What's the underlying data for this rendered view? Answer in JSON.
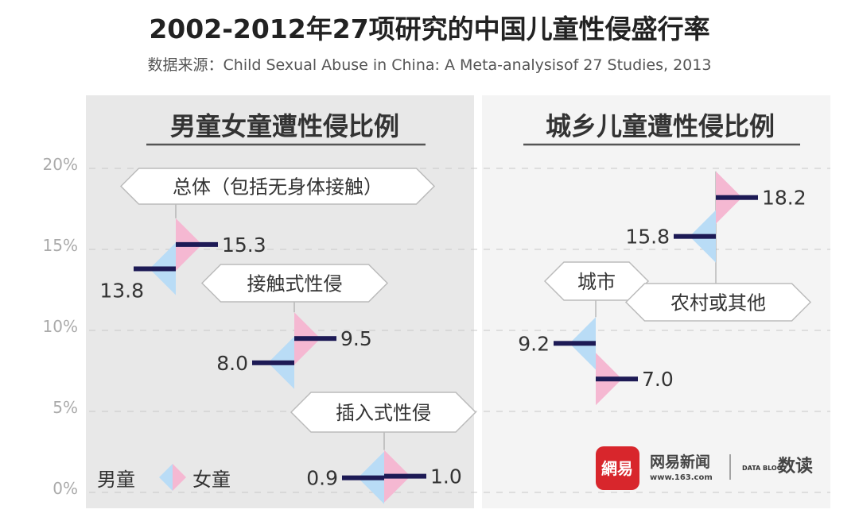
{
  "title": "2002-2012年27项研究的中国儿童性侵盛行率",
  "subtitle": "数据来源：Child Sexual Abuse in China: A Meta-analysisof 27 Studies, 2013",
  "colors": {
    "boy": "#b9dcf6",
    "girl": "#f5b8d2",
    "bar": "#1d1a55",
    "left_panel": "#e8e8e8",
    "right_panel": "#f4f4f4"
  },
  "legend": {
    "boy": "男童",
    "girl": "女童"
  },
  "logo": {
    "brand": "网易新闻",
    "url": "www.163.com",
    "mark": "網易",
    "data_blog": "DATA BLOG",
    "section": "数读"
  },
  "chart_data": [
    {
      "type": "bar",
      "title": "男童女童遭性侵比例",
      "yticks": [
        "0%",
        "5%",
        "10%",
        "15%",
        "20%"
      ],
      "ylim": [
        0,
        20
      ],
      "grid": true,
      "legend_placement": "bottom-left",
      "groups": [
        {
          "label": "总体（包括无身体接触）",
          "boy": 13.8,
          "girl": 15.3,
          "boy_label": "13.8",
          "girl_label": "15.3"
        },
        {
          "label": "接触式性侵",
          "boy": 8.0,
          "girl": 9.5,
          "boy_label": "8.0",
          "girl_label": "9.5"
        },
        {
          "label": "插入式性侵",
          "boy": 0.9,
          "girl": 1.0,
          "boy_label": "0.9",
          "girl_label": "1.0"
        }
      ]
    },
    {
      "type": "bar",
      "title": "城乡儿童遭性侵比例",
      "ylim": [
        0,
        20
      ],
      "grid": true,
      "groups": [
        {
          "label": "城市",
          "boy": 9.2,
          "girl": 7.0,
          "boy_label": "9.2",
          "girl_label": "7.0"
        },
        {
          "label": "农村或其他",
          "boy": 15.8,
          "girl": 18.2,
          "boy_label": "15.8",
          "girl_label": "18.2"
        }
      ]
    }
  ]
}
